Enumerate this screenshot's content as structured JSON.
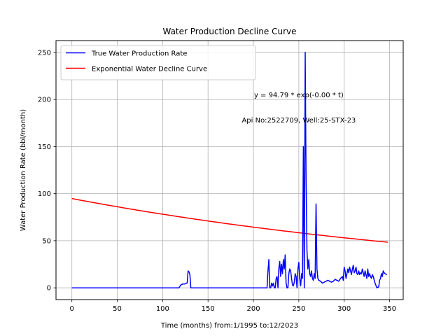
{
  "chart_data": {
    "type": "line",
    "title": "Water Production Decline Curve",
    "xlabel": "Time (months) from:1/1995 to:12/2023",
    "ylabel": "Water Production Rate (bbl/month)",
    "xlim": [
      -17.5,
      365
    ],
    "ylim": [
      -12.5,
      262.5
    ],
    "xticks": [
      0,
      50,
      100,
      150,
      200,
      250,
      300,
      350
    ],
    "yticks": [
      0,
      50,
      100,
      150,
      200,
      250
    ],
    "grid": true,
    "legend_position": "top-left",
    "annotations": [
      {
        "text": "y = 94.79 * exp(-0.00 * t)",
        "x": 250,
        "y": 205
      },
      {
        "text": "Api No:2522709, Well:25-STX-23",
        "x": 250,
        "y": 178
      }
    ],
    "series": [
      {
        "name": "True Water Production Rate",
        "color": "#0000ff",
        "points": [
          [
            0,
            0
          ],
          [
            118,
            0
          ],
          [
            120,
            3
          ],
          [
            122,
            4
          ],
          [
            124,
            4
          ],
          [
            126,
            5
          ],
          [
            127,
            5
          ],
          [
            128,
            18
          ],
          [
            129,
            17
          ],
          [
            130,
            14
          ],
          [
            131,
            0
          ],
          [
            132,
            0
          ],
          [
            214,
            0
          ],
          [
            215,
            0
          ],
          [
            216,
            18
          ],
          [
            217,
            30
          ],
          [
            218,
            0
          ],
          [
            219,
            0
          ],
          [
            220,
            5
          ],
          [
            221,
            2
          ],
          [
            222,
            5
          ],
          [
            223,
            0
          ],
          [
            224,
            0
          ],
          [
            225,
            10
          ],
          [
            226,
            12
          ],
          [
            227,
            0
          ],
          [
            228,
            20
          ],
          [
            229,
            28
          ],
          [
            230,
            12
          ],
          [
            231,
            25
          ],
          [
            232,
            15
          ],
          [
            233,
            30
          ],
          [
            234,
            20
          ],
          [
            235,
            35
          ],
          [
            236,
            5
          ],
          [
            237,
            0
          ],
          [
            238,
            0
          ],
          [
            239,
            15
          ],
          [
            240,
            20
          ],
          [
            241,
            18
          ],
          [
            242,
            10
          ],
          [
            243,
            3
          ],
          [
            244,
            2
          ],
          [
            245,
            6
          ],
          [
            246,
            15
          ],
          [
            247,
            12
          ],
          [
            248,
            0
          ],
          [
            249,
            20
          ],
          [
            250,
            27
          ],
          [
            251,
            10
          ],
          [
            252,
            2
          ],
          [
            253,
            15
          ],
          [
            254,
            10
          ],
          [
            255,
            150
          ],
          [
            256,
            0
          ],
          [
            257,
            250
          ],
          [
            258,
            120
          ],
          [
            259,
            40
          ],
          [
            260,
            20
          ],
          [
            261,
            30
          ],
          [
            262,
            15
          ],
          [
            263,
            12
          ],
          [
            264,
            18
          ],
          [
            265,
            10
          ],
          [
            266,
            8
          ],
          [
            267,
            15
          ],
          [
            268,
            10
          ],
          [
            269,
            89
          ],
          [
            270,
            20
          ],
          [
            271,
            10
          ],
          [
            272,
            8
          ],
          [
            274,
            7
          ],
          [
            276,
            5
          ],
          [
            278,
            6
          ],
          [
            280,
            7
          ],
          [
            282,
            8
          ],
          [
            284,
            7
          ],
          [
            286,
            6
          ],
          [
            288,
            7
          ],
          [
            290,
            9
          ],
          [
            292,
            8
          ],
          [
            294,
            7
          ],
          [
            296,
            10
          ],
          [
            298,
            12
          ],
          [
            299,
            8
          ],
          [
            300,
            22
          ],
          [
            301,
            18
          ],
          [
            302,
            10
          ],
          [
            303,
            15
          ],
          [
            304,
            20
          ],
          [
            305,
            16
          ],
          [
            306,
            22
          ],
          [
            307,
            18
          ],
          [
            308,
            14
          ],
          [
            309,
            20
          ],
          [
            310,
            24
          ],
          [
            311,
            16
          ],
          [
            312,
            18
          ],
          [
            313,
            22
          ],
          [
            314,
            15
          ],
          [
            315,
            14
          ],
          [
            316,
            18
          ],
          [
            317,
            14
          ],
          [
            318,
            16
          ],
          [
            319,
            15
          ],
          [
            320,
            20
          ],
          [
            321,
            16
          ],
          [
            322,
            12
          ],
          [
            323,
            18
          ],
          [
            324,
            14
          ],
          [
            325,
            10
          ],
          [
            326,
            20
          ],
          [
            327,
            12
          ],
          [
            328,
            15
          ],
          [
            329,
            12
          ],
          [
            330,
            10
          ],
          [
            331,
            14
          ],
          [
            332,
            12
          ],
          [
            334,
            5
          ],
          [
            336,
            0
          ],
          [
            338,
            1
          ],
          [
            339,
            8
          ],
          [
            340,
            10
          ],
          [
            341,
            15
          ],
          [
            342,
            12
          ],
          [
            343,
            18
          ],
          [
            344,
            16
          ],
          [
            345,
            15
          ],
          [
            347,
            14
          ]
        ]
      },
      {
        "name": "Exponential Water Decline Curve",
        "color": "#ff0000",
        "equation": "y = 94.79 * exp(-0.00 * t)",
        "a": 94.79,
        "b": 0.00193,
        "x_range": [
          0,
          348
        ]
      }
    ]
  }
}
